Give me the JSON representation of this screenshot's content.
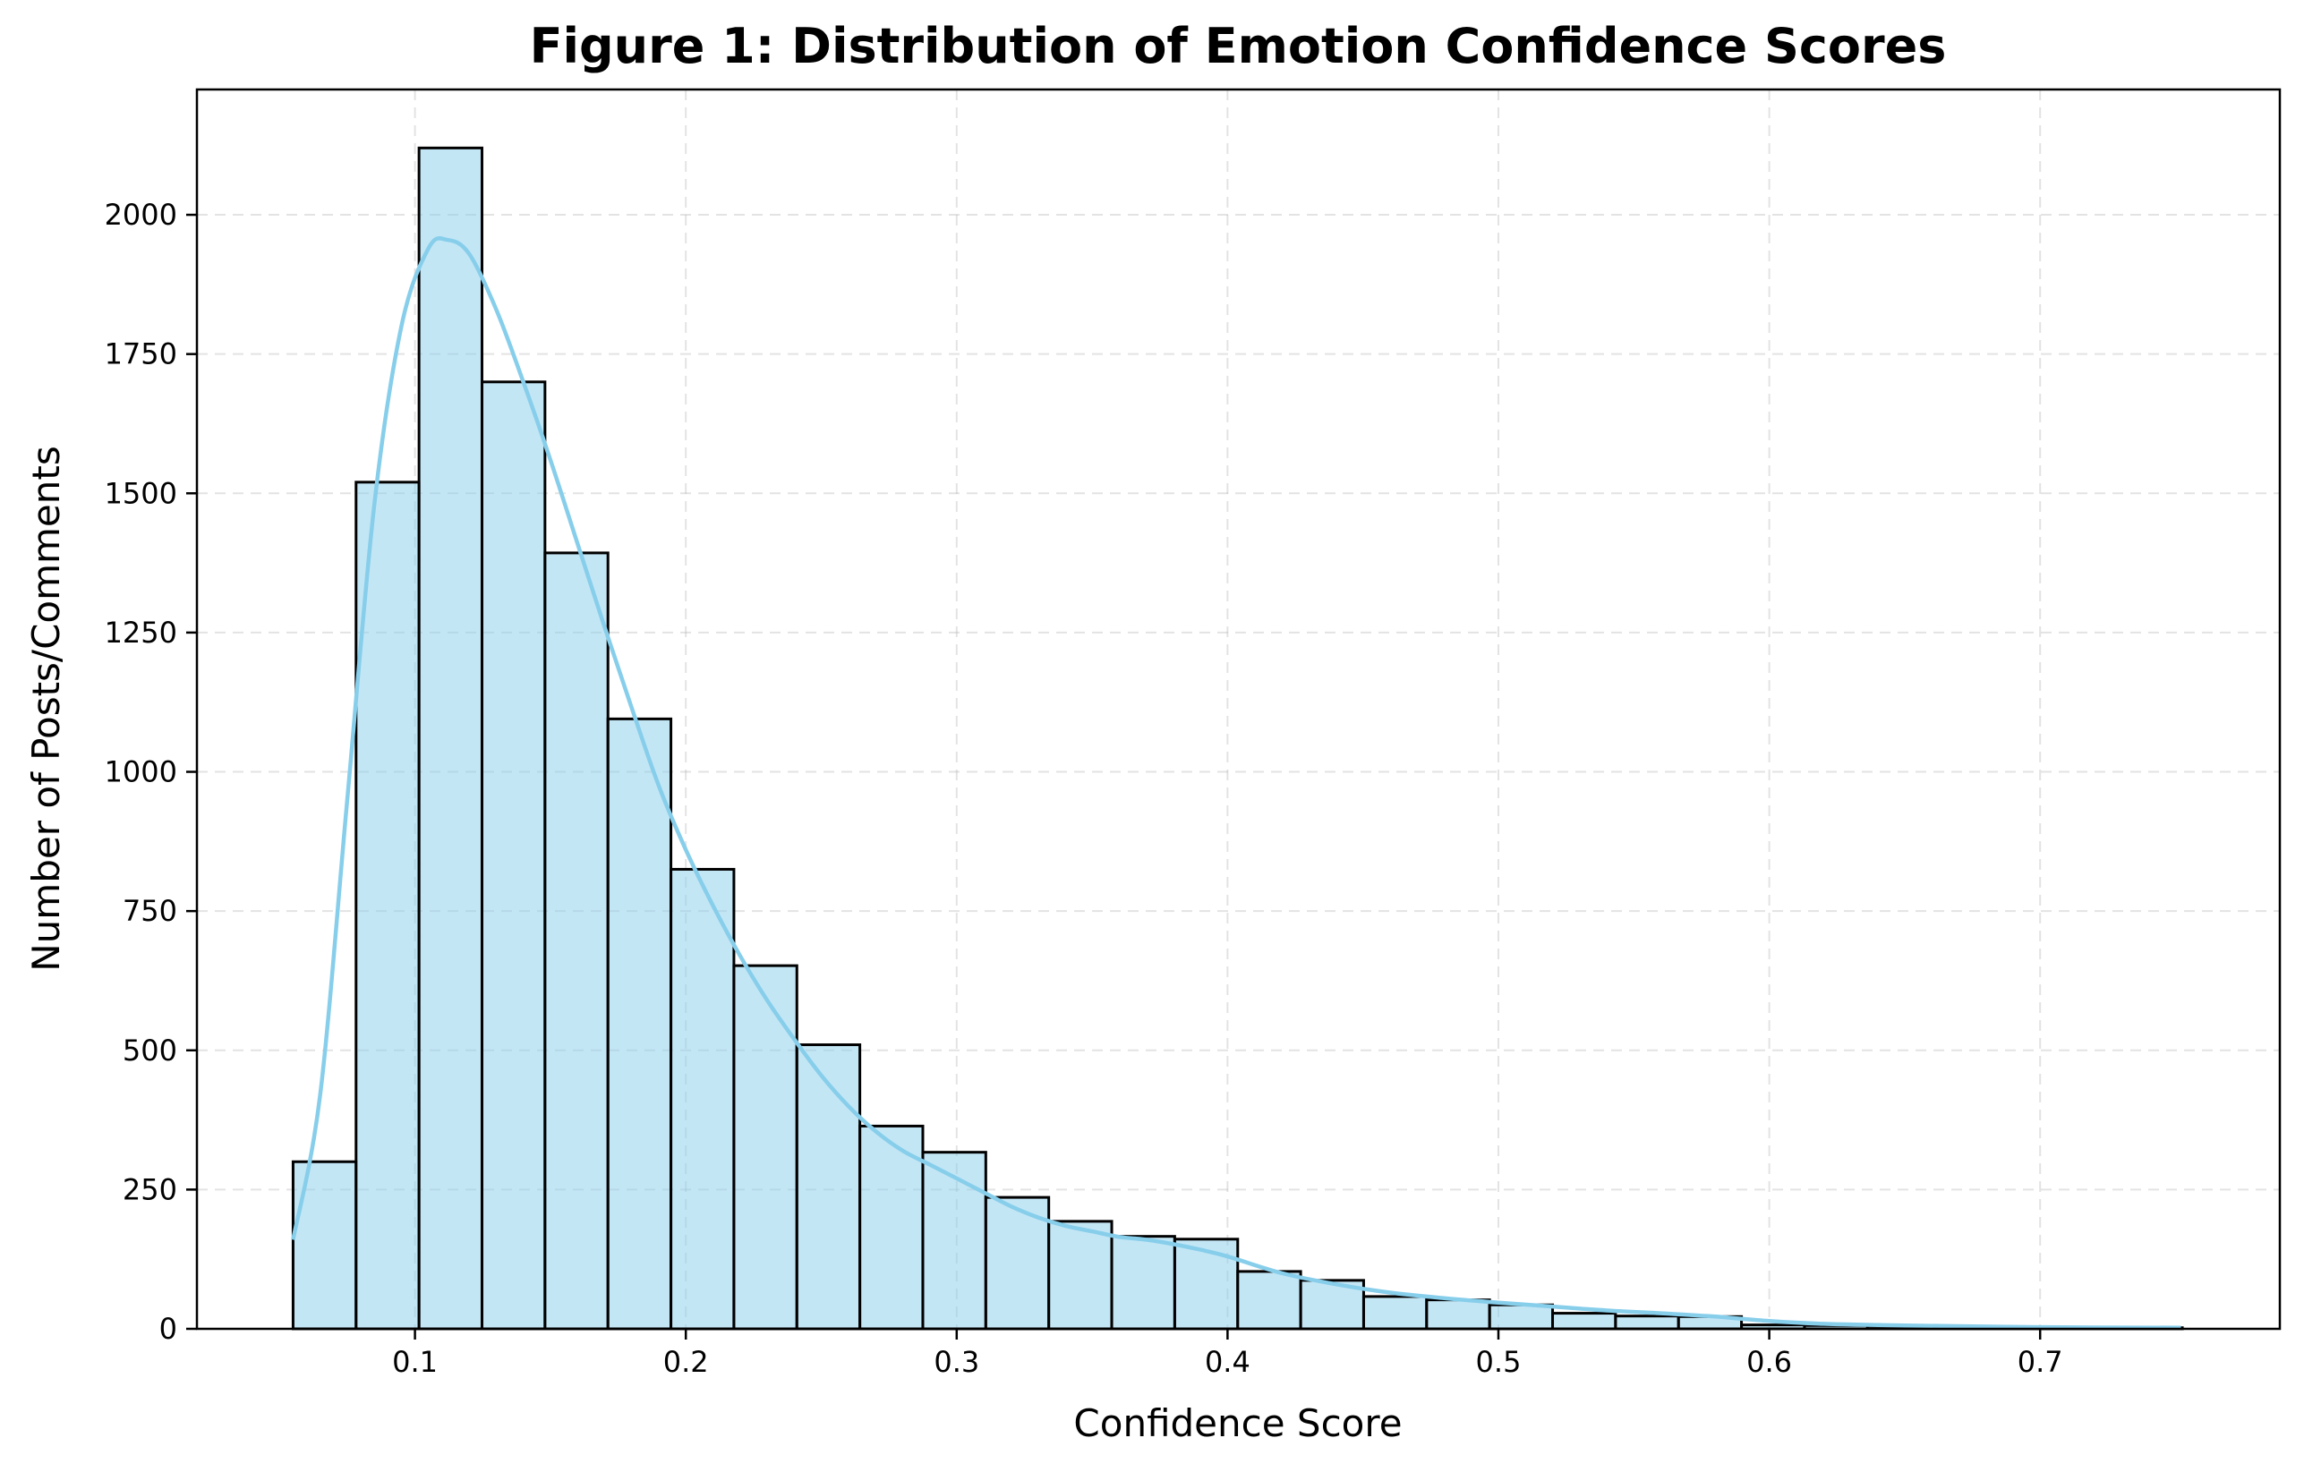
{
  "chart_data": {
    "type": "bar",
    "subtype": "histogram-with-kde",
    "title": "Figure 1: Distribution of Emotion Confidence Scores",
    "xlabel": "Confidence Score",
    "ylabel": "Number of Posts/Comments",
    "xlim": [
      0.0195,
      0.7885
    ],
    "ylim": [
      0,
      2225
    ],
    "xticks": [
      0.1,
      0.2,
      0.3,
      0.4,
      0.5,
      0.6,
      0.7
    ],
    "xtick_labels": [
      "0.1",
      "0.2",
      "0.3",
      "0.4",
      "0.5",
      "0.6",
      "0.7"
    ],
    "yticks": [
      0,
      250,
      500,
      750,
      1000,
      1250,
      1500,
      1750,
      2000
    ],
    "ytick_labels": [
      "0",
      "250",
      "500",
      "750",
      "1000",
      "1250",
      "1500",
      "1750",
      "2000"
    ],
    "grid": true,
    "colors": {
      "bar_fill": "#87ceeb",
      "bar_edge": "#000000",
      "kde_line": "#87ceeb"
    },
    "bins": {
      "start": 0.055,
      "width": 0.02325,
      "counts": [
        300,
        1520,
        2120,
        1700,
        1393,
        1095,
        825,
        652,
        510,
        364,
        317,
        236,
        193,
        166,
        161,
        103,
        87,
        58,
        52,
        43,
        28,
        23,
        22,
        7,
        6,
        5,
        3,
        2,
        2,
        2
      ]
    },
    "kde": {
      "x": [
        0.055,
        0.065,
        0.075,
        0.085,
        0.095,
        0.105,
        0.112,
        0.12,
        0.13,
        0.14,
        0.15,
        0.16,
        0.17,
        0.18,
        0.19,
        0.2,
        0.21,
        0.22,
        0.23,
        0.24,
        0.25,
        0.26,
        0.27,
        0.28,
        0.29,
        0.3,
        0.31,
        0.32,
        0.33,
        0.34,
        0.35,
        0.36,
        0.37,
        0.38,
        0.39,
        0.4,
        0.42,
        0.44,
        0.46,
        0.48,
        0.5,
        0.52,
        0.54,
        0.56,
        0.58,
        0.6,
        0.62,
        0.65,
        0.7,
        0.752
      ],
      "y": [
        160,
        420,
        950,
        1480,
        1800,
        1940,
        1955,
        1930,
        1830,
        1700,
        1560,
        1410,
        1260,
        1115,
        975,
        860,
        760,
        670,
        590,
        520,
        455,
        400,
        355,
        320,
        295,
        270,
        245,
        220,
        200,
        185,
        175,
        165,
        160,
        152,
        142,
        130,
        100,
        80,
        65,
        55,
        47,
        40,
        33,
        28,
        22,
        14,
        9,
        6,
        3,
        2
      ]
    }
  }
}
